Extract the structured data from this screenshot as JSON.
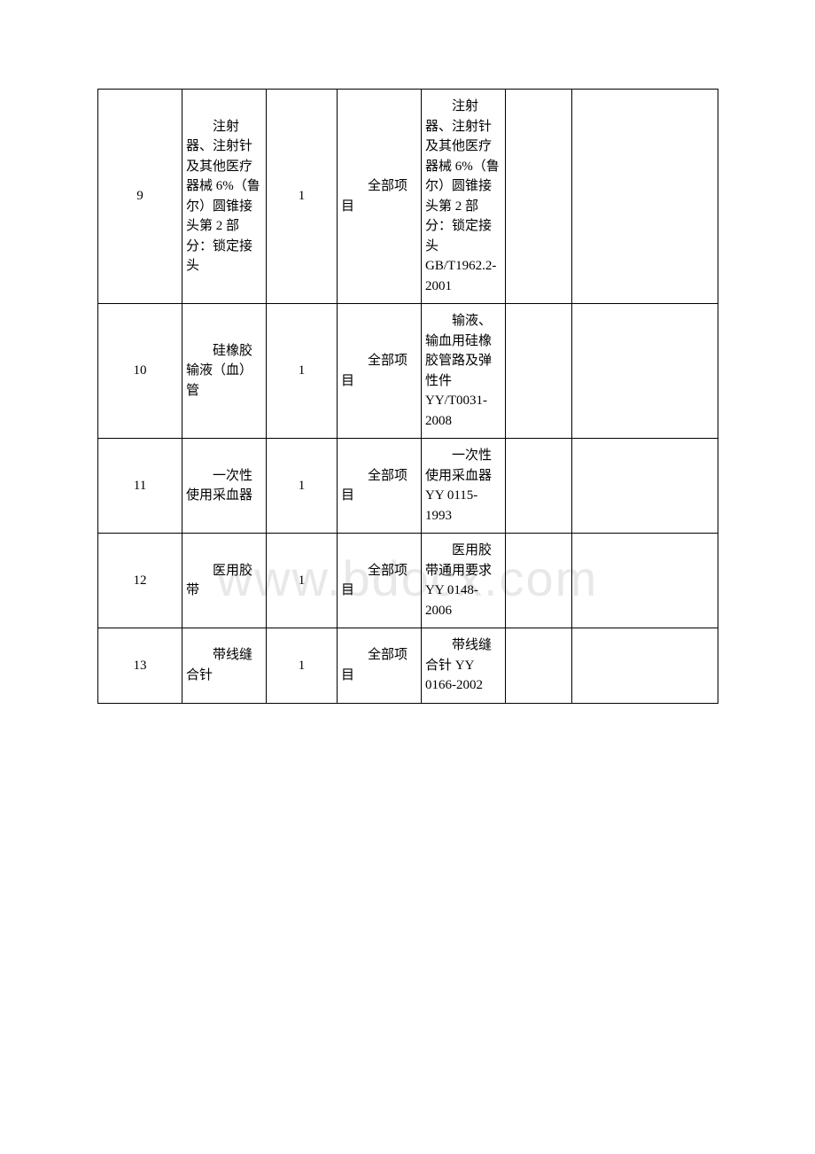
{
  "watermark": "www.bdocx.com",
  "table": {
    "columns": {
      "num_width": 95,
      "name_width": 95,
      "qty_width": 80,
      "scope_width": 95,
      "standard_width": 95,
      "empty1_width": 75,
      "empty2_width": 165
    },
    "border_color": "#000000",
    "background_color": "#ffffff",
    "text_color": "#000000",
    "font_size": 15,
    "rows": [
      {
        "num": "9",
        "name": "注射器、注射针及其他医疗器械 6%（鲁尔）圆锥接头第 2 部分：锁定接头",
        "qty": "1",
        "scope": "全部项目",
        "standard": "注射器、注射针及其他医疗器械 6%（鲁尔）圆锥接头第 2 部分：锁定接头 GB/T1962.2-2001"
      },
      {
        "num": "10",
        "name": "硅橡胶输液（血）管",
        "qty": "1",
        "scope": "全部项目",
        "standard": "输液、输血用硅橡胶管路及弹性件 YY/T0031-2008"
      },
      {
        "num": "11",
        "name": "一次性使用采血器",
        "qty": "1",
        "scope": "全部项目",
        "standard": "一次性使用采血器 YY 0115-1993"
      },
      {
        "num": "12",
        "name": "医用胶带",
        "qty": "1",
        "scope": "全部项目",
        "standard": "医用胶带通用要求 YY 0148-2006"
      },
      {
        "num": "13",
        "name": "带线缝合针",
        "qty": "1",
        "scope": "全部项目",
        "standard": "带线缝合针 YY 0166-2002"
      }
    ]
  }
}
